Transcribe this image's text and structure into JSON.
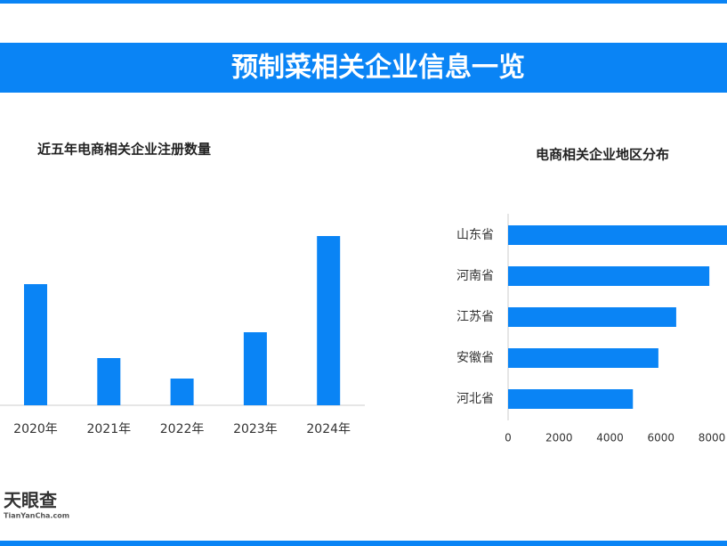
{
  "header": {
    "title": "预制菜相关企业信息一览"
  },
  "chart_data": [
    {
      "type": "bar",
      "title": "近五年电商相关企业注册数量",
      "categories": [
        "2020年",
        "2021年",
        "2022年",
        "2023年",
        "2024年"
      ],
      "values": [
        136,
        53,
        30,
        82,
        190
      ],
      "color": "#0a84f5"
    },
    {
      "type": "hbar",
      "title": "电商相关企业地区分布",
      "categories": [
        "山东省",
        "河南省",
        "江苏省",
        "安徽省",
        "河北省"
      ],
      "values": [
        8700,
        7900,
        6600,
        5900,
        4900
      ],
      "color": "#0a84f5",
      "xlim": [
        0,
        8000
      ],
      "xticks": [
        0,
        2000,
        4000,
        6000,
        8000
      ]
    }
  ],
  "logo": {
    "text": "天眼查",
    "sub": "TianYanCha.com"
  }
}
